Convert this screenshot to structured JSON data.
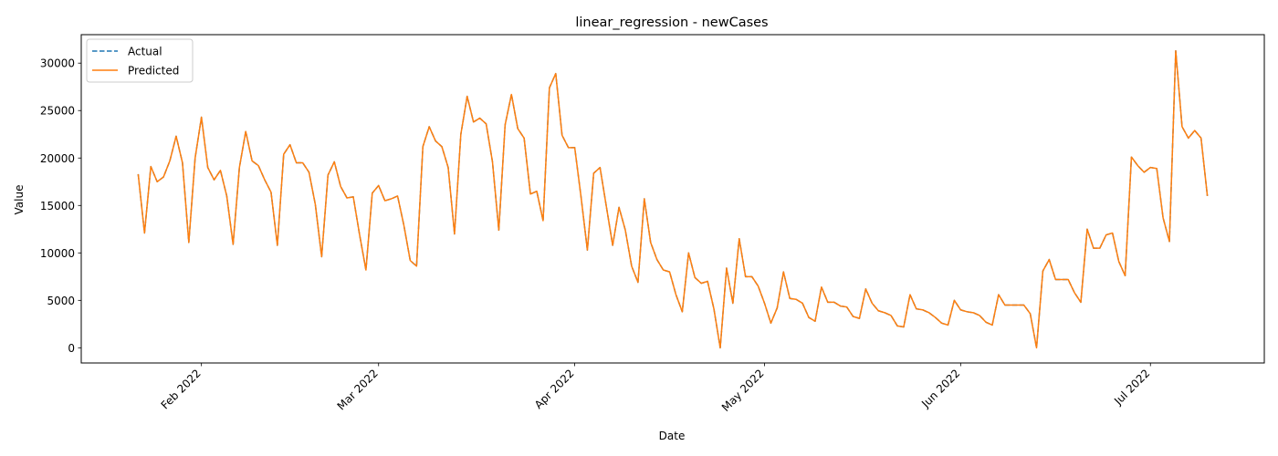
{
  "chart_data": {
    "type": "line",
    "title": "linear_regression - newCases",
    "xlabel": "Date",
    "ylabel": "Value",
    "x_start": "2022-01-22",
    "x_tick_labels": [
      {
        "date": "2022-02-01",
        "label": "Feb 2022"
      },
      {
        "date": "2022-03-01",
        "label": "Mar 2022"
      },
      {
        "date": "2022-04-01",
        "label": "Apr 2022"
      },
      {
        "date": "2022-05-01",
        "label": "May 2022"
      },
      {
        "date": "2022-06-01",
        "label": "Jun 2022"
      },
      {
        "date": "2022-07-01",
        "label": "Jul 2022"
      }
    ],
    "xlim": [
      "2022-01-13",
      "2022-07-19"
    ],
    "ylim": [
      -1600,
      33000
    ],
    "y_ticks": [
      0,
      5000,
      10000,
      15000,
      20000,
      25000,
      30000
    ],
    "y_tick_labels": [
      "0",
      "5000",
      "10000",
      "15000",
      "20000",
      "25000",
      "30000"
    ],
    "legend": {
      "position": "upper-left"
    },
    "series": [
      {
        "name": "Actual",
        "color": "#1f77b4",
        "style": "dashed",
        "values": [
          18300,
          12100,
          19100,
          17500,
          18000,
          19700,
          22300,
          19500,
          11100,
          20000,
          24300,
          19000,
          17700,
          18700,
          16000,
          10900,
          19000,
          22800,
          19700,
          19200,
          17700,
          16400,
          10800,
          20400,
          21400,
          19500,
          19500,
          18500,
          15100,
          9600,
          18200,
          19600,
          17000,
          15800,
          15900,
          11900,
          8200,
          16300,
          17100,
          15500,
          15700,
          16000,
          12900,
          9200,
          8600,
          21200,
          23300,
          21800,
          21200,
          19000,
          12000,
          22500,
          26500,
          23800,
          24200,
          23600,
          19600,
          12400,
          23500,
          26700,
          23100,
          22100,
          16200,
          16500,
          13400,
          27400,
          28900,
          22400,
          21100,
          21100,
          15900,
          10300,
          18400,
          19000,
          14900,
          10800,
          14800,
          12400,
          8600,
          6900,
          15700,
          11100,
          9300,
          8200,
          8000,
          5600,
          3800,
          10000,
          7400,
          6800,
          7000,
          4100,
          0,
          8400,
          4700,
          11500,
          7500,
          7500,
          6500,
          4700,
          2600,
          4200,
          8000,
          5200,
          5100,
          4700,
          3200,
          2800,
          6400,
          4800,
          4800,
          4400,
          4300,
          3300,
          3100,
          6200,
          4700,
          3900,
          3700,
          3400,
          2300,
          2200,
          5600,
          4100,
          4000,
          3700,
          3200,
          2600,
          2400,
          5000,
          4000,
          3800,
          3700,
          3400,
          2700,
          2400,
          5600,
          4500,
          4500,
          4500,
          4500,
          3600,
          0,
          8100,
          9300,
          7200,
          7200,
          7200,
          5800,
          4800,
          12500,
          10500,
          10500,
          11900,
          12100,
          9100,
          7600,
          20100,
          19200,
          18500,
          19000,
          18900,
          13700,
          11200,
          31300,
          23300,
          22100,
          22900,
          22100,
          16000
        ]
      },
      {
        "name": "Predicted",
        "color": "#ff7f0e",
        "style": "solid",
        "values": [
          18300,
          12100,
          19100,
          17500,
          18000,
          19700,
          22300,
          19500,
          11100,
          20000,
          24300,
          19000,
          17700,
          18700,
          16000,
          10900,
          19000,
          22800,
          19700,
          19200,
          17700,
          16400,
          10800,
          20400,
          21400,
          19500,
          19500,
          18500,
          15100,
          9600,
          18200,
          19600,
          17000,
          15800,
          15900,
          11900,
          8200,
          16300,
          17100,
          15500,
          15700,
          16000,
          12900,
          9200,
          8600,
          21200,
          23300,
          21800,
          21200,
          19000,
          12000,
          22500,
          26500,
          23800,
          24200,
          23600,
          19600,
          12400,
          23500,
          26700,
          23100,
          22100,
          16200,
          16500,
          13400,
          27400,
          28900,
          22400,
          21100,
          21100,
          15900,
          10300,
          18400,
          19000,
          14900,
          10800,
          14800,
          12400,
          8600,
          6900,
          15700,
          11100,
          9300,
          8200,
          8000,
          5600,
          3800,
          10000,
          7400,
          6800,
          7000,
          4100,
          0,
          8400,
          4700,
          11500,
          7500,
          7500,
          6500,
          4700,
          2600,
          4200,
          8000,
          5200,
          5100,
          4700,
          3200,
          2800,
          6400,
          4800,
          4800,
          4400,
          4300,
          3300,
          3100,
          6200,
          4700,
          3900,
          3700,
          3400,
          2300,
          2200,
          5600,
          4100,
          4000,
          3700,
          3200,
          2600,
          2400,
          5000,
          4000,
          3800,
          3700,
          3400,
          2700,
          2400,
          5600,
          4500,
          4500,
          4500,
          4500,
          3600,
          0,
          8100,
          9300,
          7200,
          7200,
          7200,
          5800,
          4800,
          12500,
          10500,
          10500,
          11900,
          12100,
          9100,
          7600,
          20100,
          19200,
          18500,
          19000,
          18900,
          13700,
          11200,
          31300,
          23300,
          22100,
          22900,
          22100,
          16000
        ]
      }
    ]
  }
}
